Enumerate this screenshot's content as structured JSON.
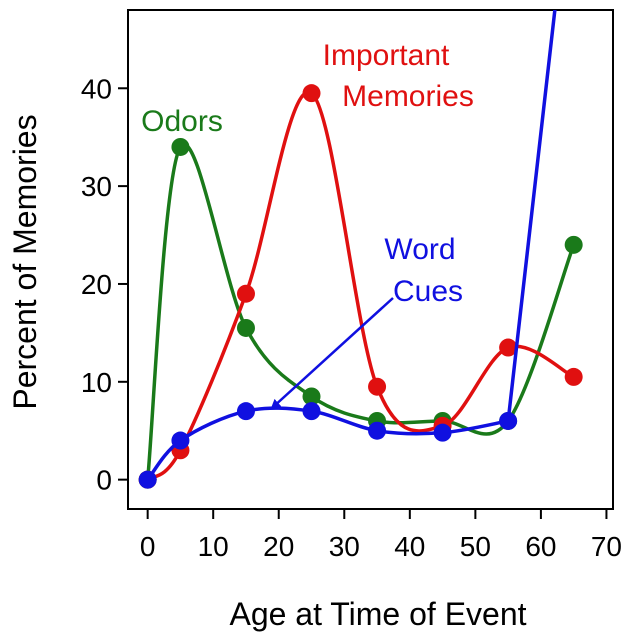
{
  "chart_data": {
    "type": "line",
    "xlabel": "Age at Time of Event",
    "ylabel": "Percent of Memories",
    "xlim": [
      -3,
      71
    ],
    "ylim": [
      -3,
      48
    ],
    "xticks": [
      0,
      10,
      20,
      30,
      40,
      50,
      60,
      70
    ],
    "yticks": [
      0,
      10,
      20,
      30,
      40
    ],
    "grid": false,
    "series": [
      {
        "name": "Odors",
        "color": "#1a7a1a",
        "x": [
          0,
          5,
          15,
          25,
          35,
          45,
          55,
          65
        ],
        "y": [
          0,
          34,
          15.5,
          8.5,
          6,
          6,
          6,
          24
        ]
      },
      {
        "name": "Important Memories",
        "color": "#e01010",
        "x": [
          0,
          5,
          15,
          25,
          35,
          45,
          55,
          65
        ],
        "y": [
          0,
          3,
          19,
          39.5,
          9.5,
          5.5,
          13.5,
          10.5
        ]
      },
      {
        "name": "Word Cues",
        "color": "#1010e0",
        "x": [
          0,
          5,
          15,
          25,
          35,
          45,
          55
        ],
        "y": [
          0,
          4,
          7,
          7,
          5,
          4.8,
          6
        ]
      }
    ],
    "annotations": [
      {
        "series": "Odors",
        "lines": [
          "Odors"
        ]
      },
      {
        "series": "Important Memories",
        "lines": [
          "Important",
          "Memories"
        ]
      },
      {
        "series": "Word Cues",
        "lines": [
          "Word",
          "Cues"
        ]
      }
    ]
  }
}
